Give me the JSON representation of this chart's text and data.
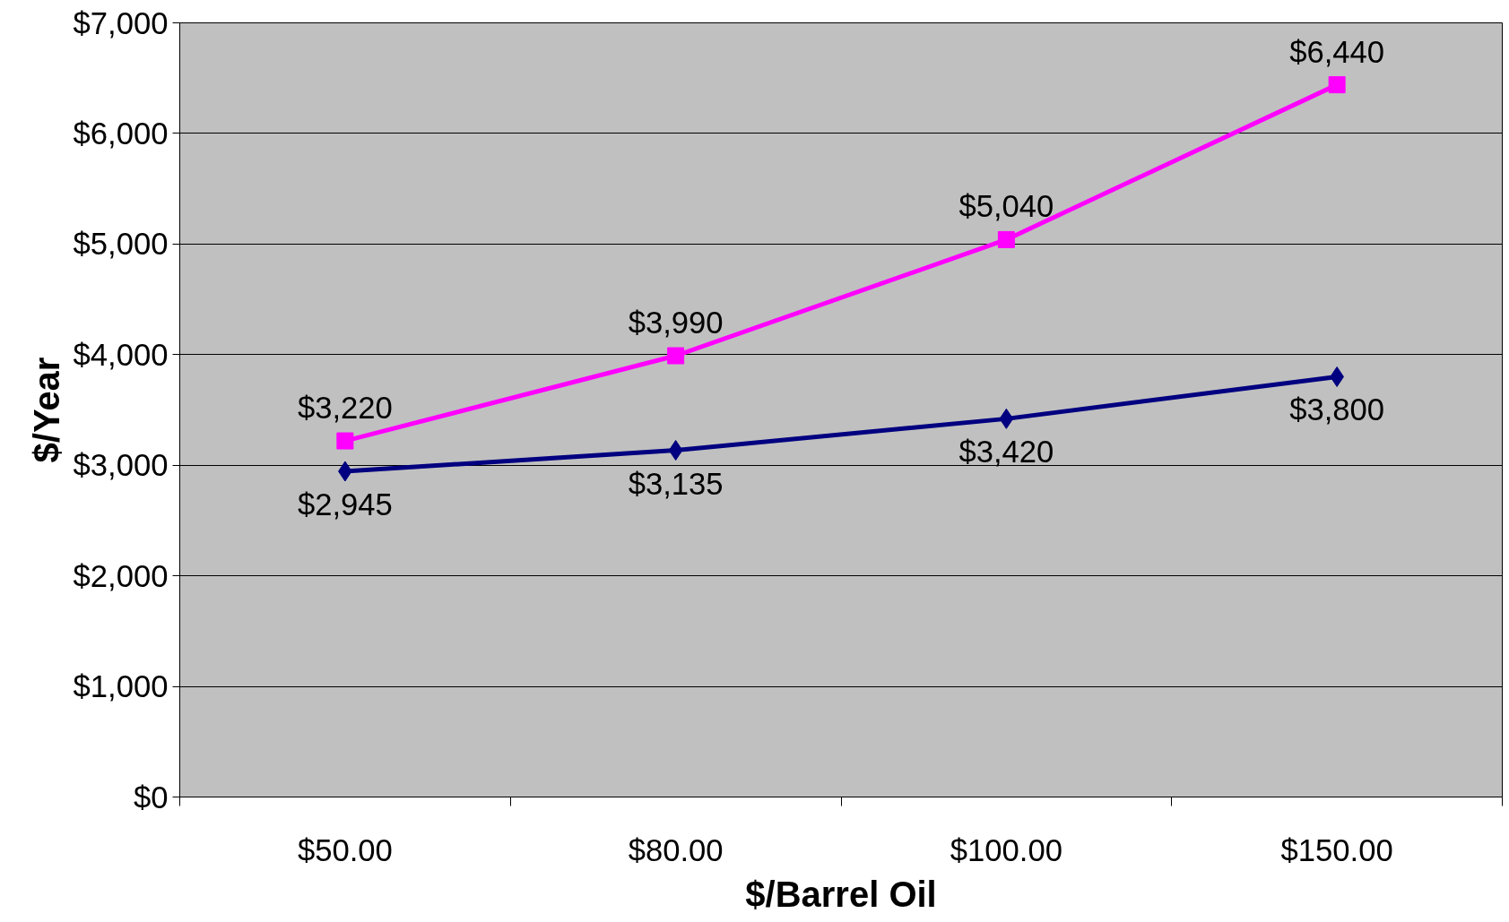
{
  "chart_data": {
    "type": "line",
    "xlabel": "$/Barrel Oil",
    "ylabel": "$/Year",
    "categories": [
      "$50.00",
      "$80.00",
      "$100.00",
      "$150.00"
    ],
    "series": [
      {
        "color": "#ff00ff",
        "marker": "square",
        "values": [
          3220,
          3990,
          5040,
          6440
        ],
        "value_labels": [
          "$3,220",
          "$3,990",
          "$5,040",
          "$6,440"
        ]
      },
      {
        "color": "#000080",
        "marker": "diamond",
        "values": [
          2945,
          3135,
          3420,
          3800
        ],
        "value_labels": [
          "$2,945",
          "$3,135",
          "$3,420",
          "$3,800"
        ]
      }
    ],
    "ylim": [
      0,
      7000
    ],
    "yticks": [
      {
        "value": 0,
        "label": "$0"
      },
      {
        "value": 1000,
        "label": "$1,000"
      },
      {
        "value": 2000,
        "label": "$2,000"
      },
      {
        "value": 3000,
        "label": "$3,000"
      },
      {
        "value": 4000,
        "label": "$4,000"
      },
      {
        "value": 5000,
        "label": "$5,000"
      },
      {
        "value": 6000,
        "label": "$6,000"
      },
      {
        "value": 7000,
        "label": "$7,000"
      }
    ],
    "grid": "y",
    "line_style": "solid"
  }
}
